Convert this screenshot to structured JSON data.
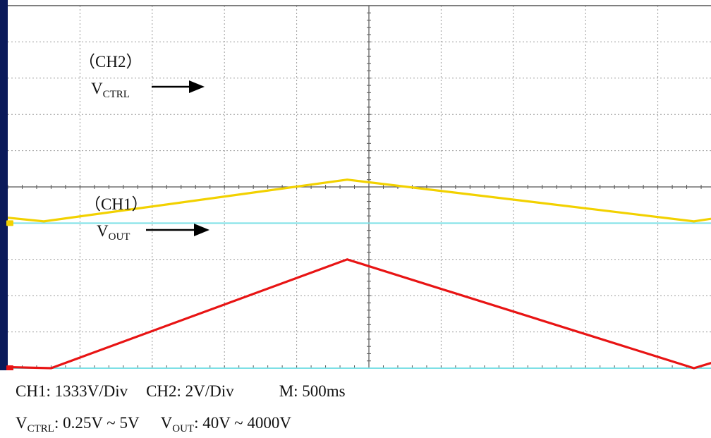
{
  "chart_data": {
    "type": "line",
    "x_unit_per_div": "500ms",
    "divisions": {
      "x": 10,
      "y": 10
    },
    "grid": true,
    "series": [
      {
        "name": "V_CTRL",
        "channel": "CH2",
        "color": "#f2d100",
        "scale_per_div": 2,
        "unit": "V",
        "ground_div": 4,
        "points": [
          [
            0,
            0.15
          ],
          [
            0.5,
            0.05
          ],
          [
            4.7,
            1.2
          ],
          [
            9.5,
            0.05
          ],
          [
            10,
            0.2
          ]
        ]
      },
      {
        "name": "V_OUT",
        "channel": "CH1",
        "color": "#e81414",
        "scale_per_div": 1333,
        "unit": "V",
        "ground_div": 0,
        "points": [
          [
            0,
            0.03
          ],
          [
            0.6,
            0.0
          ],
          [
            4.7,
            3.0
          ],
          [
            9.5,
            0.0
          ],
          [
            10,
            0.3
          ]
        ]
      }
    ],
    "reference_lines": [
      {
        "color": "#7de0e6",
        "y_div": 4
      },
      {
        "color": "#7de0e6",
        "y_div": 0
      }
    ],
    "annotations": [
      {
        "channel_label": "（CH2）",
        "signal": "V",
        "signal_sub": "CTRL"
      },
      {
        "channel_label": "（CH1）",
        "signal": "V",
        "signal_sub": "OUT"
      }
    ]
  },
  "caption": {
    "ch1": "CH1: 1333V/Div",
    "ch2": "CH2: 2V/Div",
    "m": "M: 500ms",
    "vctrl_v": "V",
    "vctrl_sub": "CTRL",
    "vctrl_range": ": 0.25V ~ 5V",
    "vout_v": "V",
    "vout_sub": "OUT",
    "vout_range": ": 40V ~ 4000V"
  },
  "colors": {
    "screen_bg": "#ffffff",
    "grid": "#9a9a9a",
    "axis": "#555555",
    "left_bar": "#0b1a5a",
    "arrow": "#000000"
  }
}
